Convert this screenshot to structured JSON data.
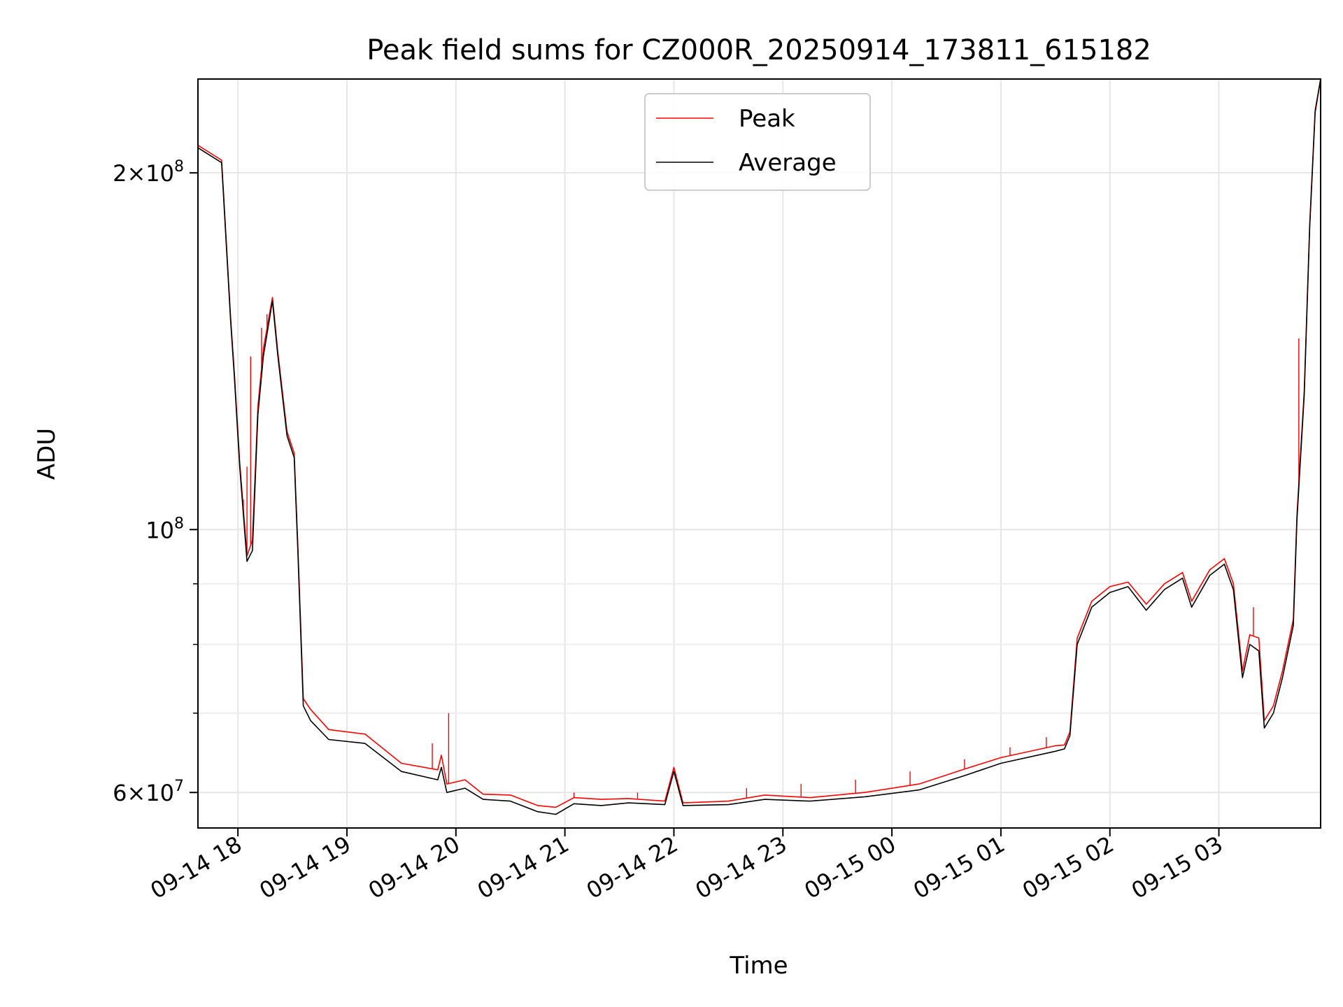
{
  "chart_data": {
    "type": "line",
    "title": "Peak field sums for CZ000R_20250914_173811_615182",
    "xlabel": "Time",
    "ylabel": "ADU",
    "yscale": "log",
    "grid": true,
    "legend_position": "top-center",
    "xlim": [
      "2025-09-14 17:38",
      "2025-09-15 03:56"
    ],
    "ylim": [
      56000000,
      240000000
    ],
    "x_ticks": [
      {
        "at": "2025-09-14 18:00",
        "label": "09-14 18"
      },
      {
        "at": "2025-09-14 19:00",
        "label": "09-14 19"
      },
      {
        "at": "2025-09-14 20:00",
        "label": "09-14 20"
      },
      {
        "at": "2025-09-14 21:00",
        "label": "09-14 21"
      },
      {
        "at": "2025-09-14 22:00",
        "label": "09-14 22"
      },
      {
        "at": "2025-09-14 23:00",
        "label": "09-14 23"
      },
      {
        "at": "2025-09-15 00:00",
        "label": "09-15 00"
      },
      {
        "at": "2025-09-15 01:00",
        "label": "09-15 01"
      },
      {
        "at": "2025-09-15 02:00",
        "label": "09-15 02"
      },
      {
        "at": "2025-09-15 03:00",
        "label": "09-15 03"
      }
    ],
    "y_ticks": [
      {
        "value": 60000000,
        "base": "6×10",
        "exp": "7"
      },
      {
        "value": 100000000,
        "base": "10",
        "exp": "8"
      },
      {
        "value": 200000000,
        "base": "2×10",
        "exp": "8"
      }
    ],
    "y_minor_ticks": [
      70000000,
      80000000,
      90000000
    ],
    "series": [
      {
        "name": "Average",
        "color": "#000000",
        "points": [
          [
            "2025-09-14 17:38",
            210000000
          ],
          [
            "2025-09-14 17:51",
            204000000
          ],
          [
            "2025-09-14 17:52",
            192000000
          ],
          [
            "2025-09-14 17:56",
            150000000
          ],
          [
            "2025-09-14 17:58",
            135000000
          ],
          [
            "2025-09-14 18:01",
            113000000
          ],
          [
            "2025-09-14 18:05",
            94000000
          ],
          [
            "2025-09-14 18:08",
            96000000
          ],
          [
            "2025-09-14 18:11",
            125000000
          ],
          [
            "2025-09-14 18:14",
            140000000
          ],
          [
            "2025-09-14 18:19",
            156000000
          ],
          [
            "2025-09-14 18:22",
            140000000
          ],
          [
            "2025-09-14 18:27",
            120000000
          ],
          [
            "2025-09-14 18:31",
            115000000
          ],
          [
            "2025-09-14 18:33",
            96000000
          ],
          [
            "2025-09-14 18:36",
            71000000
          ],
          [
            "2025-09-14 18:40",
            69000000
          ],
          [
            "2025-09-14 18:50",
            66500000
          ],
          [
            "2025-09-14 19:10",
            66000000
          ],
          [
            "2025-09-14 19:30",
            62500000
          ],
          [
            "2025-09-14 19:50",
            61500000
          ],
          [
            "2025-09-14 19:52",
            63000000
          ],
          [
            "2025-09-14 19:55",
            60000000
          ],
          [
            "2025-09-14 20:05",
            60500000
          ],
          [
            "2025-09-14 20:15",
            59200000
          ],
          [
            "2025-09-14 20:30",
            59000000
          ],
          [
            "2025-09-14 20:45",
            57800000
          ],
          [
            "2025-09-14 20:55",
            57500000
          ],
          [
            "2025-09-14 21:05",
            58700000
          ],
          [
            "2025-09-14 21:20",
            58500000
          ],
          [
            "2025-09-14 21:35",
            58800000
          ],
          [
            "2025-09-14 21:55",
            58600000
          ],
          [
            "2025-09-14 22:00",
            62500000
          ],
          [
            "2025-09-14 22:05",
            58500000
          ],
          [
            "2025-09-14 22:30",
            58600000
          ],
          [
            "2025-09-14 22:50",
            59200000
          ],
          [
            "2025-09-14 23:15",
            59000000
          ],
          [
            "2025-09-14 23:45",
            59500000
          ],
          [
            "2025-09-15 00:15",
            60300000
          ],
          [
            "2025-09-15 00:40",
            62000000
          ],
          [
            "2025-09-15 01:00",
            63500000
          ],
          [
            "2025-09-15 01:30",
            65000000
          ],
          [
            "2025-09-15 01:35",
            65300000
          ],
          [
            "2025-09-15 01:38",
            67000000
          ],
          [
            "2025-09-15 01:42",
            80000000
          ],
          [
            "2025-09-15 01:50",
            86000000
          ],
          [
            "2025-09-15 02:00",
            88500000
          ],
          [
            "2025-09-15 02:10",
            89500000
          ],
          [
            "2025-09-15 02:20",
            85500000
          ],
          [
            "2025-09-15 02:30",
            89000000
          ],
          [
            "2025-09-15 02:40",
            91000000
          ],
          [
            "2025-09-15 02:45",
            86000000
          ],
          [
            "2025-09-15 02:55",
            91500000
          ],
          [
            "2025-09-15 03:03",
            93500000
          ],
          [
            "2025-09-15 03:08",
            89000000
          ],
          [
            "2025-09-15 03:13",
            75000000
          ],
          [
            "2025-09-15 03:17",
            80000000
          ],
          [
            "2025-09-15 03:22",
            79000000
          ],
          [
            "2025-09-15 03:25",
            68000000
          ],
          [
            "2025-09-15 03:30",
            70000000
          ],
          [
            "2025-09-15 03:35",
            75000000
          ],
          [
            "2025-09-15 03:41",
            83000000
          ],
          [
            "2025-09-15 03:43",
            102000000
          ],
          [
            "2025-09-15 03:47",
            130000000
          ],
          [
            "2025-09-15 03:50",
            180000000
          ],
          [
            "2025-09-15 03:53",
            225000000
          ],
          [
            "2025-09-15 03:56",
            240000000
          ]
        ]
      },
      {
        "name": "Peak",
        "color": "#ff0000",
        "points": [
          [
            "2025-09-14 17:38",
            211000000
          ],
          [
            "2025-09-14 17:51",
            205000000
          ],
          [
            "2025-09-14 17:52",
            193000000
          ],
          [
            "2025-09-14 17:56",
            151000000
          ],
          [
            "2025-09-14 17:58",
            136000000
          ],
          [
            "2025-09-14 18:01",
            114000000
          ],
          [
            "2025-09-14 18:05",
            95000000
          ],
          [
            "2025-09-14 18:08",
            98000000
          ],
          [
            "2025-09-14 18:11",
            127000000
          ],
          [
            "2025-09-14 18:14",
            142000000
          ],
          [
            "2025-09-14 18:19",
            157000000
          ],
          [
            "2025-09-14 18:22",
            141000000
          ],
          [
            "2025-09-14 18:27",
            121000000
          ],
          [
            "2025-09-14 18:31",
            116000000
          ],
          [
            "2025-09-14 18:33",
            97000000
          ],
          [
            "2025-09-14 18:36",
            72000000
          ],
          [
            "2025-09-14 18:40",
            70500000
          ],
          [
            "2025-09-14 18:50",
            67800000
          ],
          [
            "2025-09-14 19:10",
            67200000
          ],
          [
            "2025-09-14 19:30",
            63500000
          ],
          [
            "2025-09-14 19:50",
            62700000
          ],
          [
            "2025-09-14 19:52",
            64500000
          ],
          [
            "2025-09-14 19:55",
            61000000
          ],
          [
            "2025-09-14 20:05",
            61500000
          ],
          [
            "2025-09-14 20:15",
            59800000
          ],
          [
            "2025-09-14 20:30",
            59700000
          ],
          [
            "2025-09-14 20:45",
            58500000
          ],
          [
            "2025-09-14 20:55",
            58300000
          ],
          [
            "2025-09-14 21:05",
            59400000
          ],
          [
            "2025-09-14 21:20",
            59200000
          ],
          [
            "2025-09-14 21:35",
            59300000
          ],
          [
            "2025-09-14 21:55",
            59000000
          ],
          [
            "2025-09-14 22:00",
            63000000
          ],
          [
            "2025-09-14 22:05",
            58800000
          ],
          [
            "2025-09-14 22:30",
            59000000
          ],
          [
            "2025-09-14 22:50",
            59700000
          ],
          [
            "2025-09-14 23:15",
            59400000
          ],
          [
            "2025-09-14 23:45",
            60000000
          ],
          [
            "2025-09-15 00:15",
            61000000
          ],
          [
            "2025-09-15 00:40",
            62800000
          ],
          [
            "2025-09-15 01:00",
            64200000
          ],
          [
            "2025-09-15 01:30",
            65700000
          ],
          [
            "2025-09-15 01:35",
            65800000
          ],
          [
            "2025-09-15 01:38",
            67500000
          ],
          [
            "2025-09-15 01:42",
            81000000
          ],
          [
            "2025-09-15 01:50",
            87000000
          ],
          [
            "2025-09-15 02:00",
            89500000
          ],
          [
            "2025-09-15 02:10",
            90300000
          ],
          [
            "2025-09-15 02:20",
            86500000
          ],
          [
            "2025-09-15 02:30",
            90000000
          ],
          [
            "2025-09-15 02:40",
            92000000
          ],
          [
            "2025-09-15 02:45",
            87000000
          ],
          [
            "2025-09-15 02:55",
            92500000
          ],
          [
            "2025-09-15 03:03",
            94500000
          ],
          [
            "2025-09-15 03:08",
            90000000
          ],
          [
            "2025-09-15 03:13",
            76000000
          ],
          [
            "2025-09-15 03:17",
            81500000
          ],
          [
            "2025-09-15 03:22",
            81000000
          ],
          [
            "2025-09-15 03:25",
            69000000
          ],
          [
            "2025-09-15 03:30",
            71000000
          ],
          [
            "2025-09-15 03:35",
            76000000
          ],
          [
            "2025-09-15 03:41",
            84000000
          ],
          [
            "2025-09-15 03:43",
            103000000
          ],
          [
            "2025-09-15 03:47",
            131000000
          ],
          [
            "2025-09-15 03:50",
            181000000
          ],
          [
            "2025-09-15 03:53",
            226000000
          ],
          [
            "2025-09-15 03:56",
            240000000
          ]
        ],
        "spikes": [
          [
            "2025-09-14 18:03",
            106000000
          ],
          [
            "2025-09-14 18:05",
            113000000
          ],
          [
            "2025-09-14 18:07",
            140000000
          ],
          [
            "2025-09-14 18:13",
            148000000
          ],
          [
            "2025-09-14 18:16",
            152000000
          ],
          [
            "2025-09-14 19:47",
            66000000
          ],
          [
            "2025-09-14 19:56",
            70000000
          ],
          [
            "2025-09-14 21:05",
            60000000
          ],
          [
            "2025-09-14 21:40",
            60000000
          ],
          [
            "2025-09-14 22:40",
            60500000
          ],
          [
            "2025-09-14 23:10",
            61000000
          ],
          [
            "2025-09-14 23:40",
            61500000
          ],
          [
            "2025-09-15 00:10",
            62500000
          ],
          [
            "2025-09-15 00:40",
            64000000
          ],
          [
            "2025-09-15 01:05",
            65500000
          ],
          [
            "2025-09-15 01:25",
            66800000
          ],
          [
            "2025-09-15 03:19",
            86000000
          ],
          [
            "2025-09-15 03:44",
            145000000
          ]
        ]
      }
    ]
  }
}
